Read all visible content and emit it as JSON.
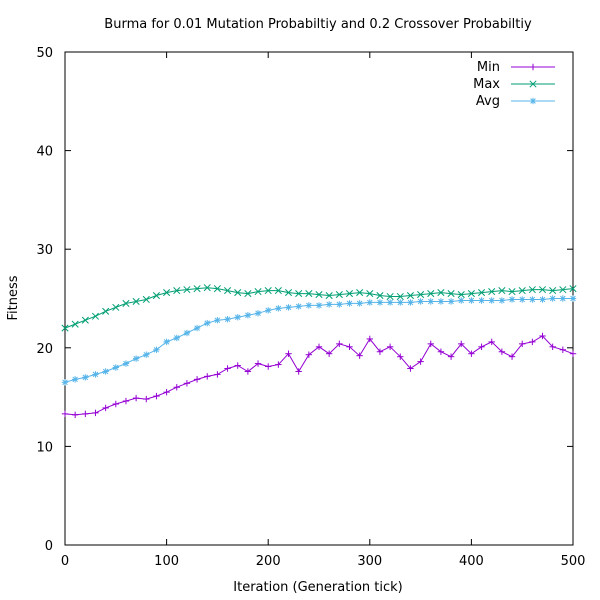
{
  "chart_data": {
    "type": "line",
    "title": "Burma for 0.01 Mutation Probabiltiy and 0.2 Crossover Probabiltiy",
    "xlabel": "Iteration (Generation tick)",
    "ylabel": "Fitness",
    "xlim": [
      0,
      500
    ],
    "ylim": [
      0,
      50
    ],
    "xticks": [
      0,
      100,
      200,
      300,
      400,
      500
    ],
    "yticks": [
      0,
      10,
      20,
      30,
      40,
      50
    ],
    "grid": false,
    "legend_position": "top-right",
    "series": [
      {
        "name": "Min",
        "color": "#9400d3",
        "marker": "plus",
        "points": [
          [
            0,
            13.3
          ],
          [
            10,
            13.2
          ],
          [
            20,
            13.3
          ],
          [
            30,
            13.4
          ],
          [
            40,
            13.9
          ],
          [
            50,
            14.3
          ],
          [
            60,
            14.6
          ],
          [
            70,
            14.9
          ],
          [
            80,
            14.8
          ],
          [
            90,
            15.1
          ],
          [
            100,
            15.5
          ],
          [
            110,
            16.0
          ],
          [
            120,
            16.4
          ],
          [
            130,
            16.8
          ],
          [
            140,
            17.1
          ],
          [
            150,
            17.3
          ],
          [
            160,
            17.9
          ],
          [
            170,
            18.2
          ],
          [
            180,
            17.6
          ],
          [
            190,
            18.4
          ],
          [
            200,
            18.1
          ],
          [
            210,
            18.3
          ],
          [
            220,
            19.4
          ],
          [
            230,
            17.6
          ],
          [
            240,
            19.3
          ],
          [
            250,
            20.1
          ],
          [
            260,
            19.4
          ],
          [
            270,
            20.4
          ],
          [
            280,
            20.1
          ],
          [
            290,
            19.2
          ],
          [
            300,
            20.9
          ],
          [
            310,
            19.6
          ],
          [
            320,
            20.1
          ],
          [
            330,
            19.1
          ],
          [
            340,
            17.9
          ],
          [
            350,
            18.6
          ],
          [
            360,
            20.4
          ],
          [
            370,
            19.6
          ],
          [
            380,
            19.1
          ],
          [
            390,
            20.4
          ],
          [
            400,
            19.4
          ],
          [
            410,
            20.1
          ],
          [
            420,
            20.6
          ],
          [
            430,
            19.6
          ],
          [
            440,
            19.1
          ],
          [
            450,
            20.4
          ],
          [
            460,
            20.6
          ],
          [
            470,
            21.2
          ],
          [
            480,
            20.1
          ],
          [
            490,
            19.8
          ],
          [
            500,
            19.4
          ]
        ]
      },
      {
        "name": "Max",
        "color": "#009e73",
        "marker": "x",
        "points": [
          [
            0,
            22.0
          ],
          [
            10,
            22.4
          ],
          [
            20,
            22.8
          ],
          [
            30,
            23.2
          ],
          [
            40,
            23.7
          ],
          [
            50,
            24.1
          ],
          [
            60,
            24.5
          ],
          [
            70,
            24.7
          ],
          [
            80,
            24.9
          ],
          [
            90,
            25.3
          ],
          [
            100,
            25.6
          ],
          [
            110,
            25.8
          ],
          [
            120,
            25.9
          ],
          [
            130,
            26.0
          ],
          [
            140,
            26.1
          ],
          [
            150,
            26.0
          ],
          [
            160,
            25.8
          ],
          [
            170,
            25.6
          ],
          [
            180,
            25.5
          ],
          [
            190,
            25.7
          ],
          [
            200,
            25.8
          ],
          [
            210,
            25.8
          ],
          [
            220,
            25.6
          ],
          [
            230,
            25.5
          ],
          [
            240,
            25.5
          ],
          [
            250,
            25.4
          ],
          [
            260,
            25.3
          ],
          [
            270,
            25.4
          ],
          [
            280,
            25.5
          ],
          [
            290,
            25.6
          ],
          [
            300,
            25.5
          ],
          [
            310,
            25.3
          ],
          [
            320,
            25.2
          ],
          [
            330,
            25.2
          ],
          [
            340,
            25.3
          ],
          [
            350,
            25.4
          ],
          [
            360,
            25.5
          ],
          [
            370,
            25.6
          ],
          [
            380,
            25.5
          ],
          [
            390,
            25.4
          ],
          [
            400,
            25.5
          ],
          [
            410,
            25.6
          ],
          [
            420,
            25.7
          ],
          [
            430,
            25.8
          ],
          [
            440,
            25.7
          ],
          [
            450,
            25.8
          ],
          [
            460,
            25.9
          ],
          [
            470,
            25.9
          ],
          [
            480,
            25.8
          ],
          [
            490,
            25.9
          ],
          [
            500,
            26.0
          ]
        ]
      },
      {
        "name": "Avg",
        "color": "#56b4e9",
        "marker": "star",
        "points": [
          [
            0,
            16.5
          ],
          [
            10,
            16.8
          ],
          [
            20,
            17.0
          ],
          [
            30,
            17.3
          ],
          [
            40,
            17.6
          ],
          [
            50,
            18.0
          ],
          [
            60,
            18.4
          ],
          [
            70,
            18.9
          ],
          [
            80,
            19.3
          ],
          [
            90,
            19.8
          ],
          [
            100,
            20.6
          ],
          [
            110,
            21.0
          ],
          [
            120,
            21.5
          ],
          [
            130,
            22.0
          ],
          [
            140,
            22.5
          ],
          [
            150,
            22.8
          ],
          [
            160,
            22.9
          ],
          [
            170,
            23.1
          ],
          [
            180,
            23.3
          ],
          [
            190,
            23.5
          ],
          [
            200,
            23.8
          ],
          [
            210,
            24.0
          ],
          [
            220,
            24.1
          ],
          [
            230,
            24.2
          ],
          [
            240,
            24.3
          ],
          [
            250,
            24.3
          ],
          [
            260,
            24.4
          ],
          [
            270,
            24.4
          ],
          [
            280,
            24.5
          ],
          [
            290,
            24.5
          ],
          [
            300,
            24.6
          ],
          [
            310,
            24.6
          ],
          [
            320,
            24.6
          ],
          [
            330,
            24.6
          ],
          [
            340,
            24.6
          ],
          [
            350,
            24.7
          ],
          [
            360,
            24.7
          ],
          [
            370,
            24.7
          ],
          [
            380,
            24.7
          ],
          [
            390,
            24.8
          ],
          [
            400,
            24.8
          ],
          [
            410,
            24.8
          ],
          [
            420,
            24.8
          ],
          [
            430,
            24.8
          ],
          [
            440,
            24.9
          ],
          [
            450,
            24.9
          ],
          [
            460,
            24.9
          ],
          [
            470,
            24.9
          ],
          [
            480,
            25.0
          ],
          [
            490,
            25.0
          ],
          [
            500,
            25.0
          ]
        ]
      }
    ]
  }
}
